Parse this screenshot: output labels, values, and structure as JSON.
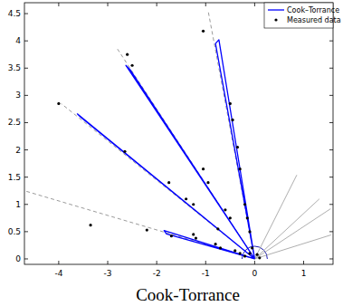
{
  "chart_data": {
    "type": "line",
    "title": "Cook-Torrance",
    "xlim": [
      -4.7,
      1.6
    ],
    "ylim": [
      -0.1,
      4.7
    ],
    "xticks": [
      -4,
      -3,
      -2,
      -1,
      0,
      1
    ],
    "yticks": [
      0,
      0.5,
      1,
      1.5,
      2,
      2.5,
      3,
      3.5,
      4,
      4.5
    ],
    "legend": "upper right",
    "grid": false,
    "series": [
      {
        "name": "Cook–Torrance",
        "type": "line",
        "color": "#0000ff",
        "line_style": "solid",
        "x": [
          0,
          -0.8,
          -0.73,
          0,
          null,
          0,
          -2.63,
          -2.55,
          0,
          null,
          0,
          -3.62,
          -3.55,
          0,
          null,
          0,
          -1.85,
          -1.8,
          0
        ],
        "values": [
          0,
          3.95,
          4.02,
          0,
          null,
          0,
          3.55,
          3.48,
          0,
          null,
          0,
          2.66,
          2.6,
          0,
          null,
          0,
          0.52,
          0.46,
          0
        ]
      },
      {
        "name": "Measured data",
        "type": "scatter",
        "color": "#000000",
        "marker": "dot",
        "x": [
          -1.05,
          -0.5,
          -0.45,
          -0.35,
          -0.3,
          -0.2,
          -0.15,
          -0.1,
          -2.6,
          -2.5,
          -1.05,
          -0.95,
          -0.6,
          -0.5,
          -4.0,
          -2.65,
          -1.75,
          -1.4,
          -1.25,
          -0.75,
          -3.35,
          -2.2,
          -1.7,
          -1.25,
          -1.2,
          -0.8,
          -0.7,
          -0.4,
          -0.1,
          -0.2,
          0.05,
          -0.05,
          0.1,
          -0.3
        ],
        "values": [
          4.18,
          2.85,
          2.55,
          2.05,
          1.65,
          1.0,
          0.75,
          0.5,
          3.75,
          3.55,
          1.65,
          1.4,
          0.9,
          0.75,
          2.85,
          1.97,
          1.4,
          1.1,
          1.0,
          0.55,
          0.62,
          0.53,
          0.42,
          0.45,
          0.38,
          0.27,
          0.2,
          0.15,
          0.1,
          0.05,
          0.08,
          0.2,
          0.02,
          0.1
        ]
      },
      {
        "type": "line",
        "color": "#808080",
        "line_style": "dashed",
        "x": [
          0,
          -0.95,
          null,
          0,
          -2.8,
          null,
          0,
          -3.95,
          null,
          0,
          -4.7
        ],
        "values": [
          0,
          4.55,
          null,
          0,
          3.85,
          null,
          0,
          2.85,
          null,
          0,
          1.25
        ]
      },
      {
        "type": "line",
        "color": "#999999",
        "line_style": "solid",
        "x": [
          0,
          0.86,
          null,
          0,
          1.32,
          null,
          0,
          1.55,
          null,
          0,
          1.56
        ],
        "values": [
          0,
          1.54,
          null,
          0,
          1.1,
          null,
          0,
          0.92,
          null,
          0,
          0.44
        ]
      }
    ]
  }
}
